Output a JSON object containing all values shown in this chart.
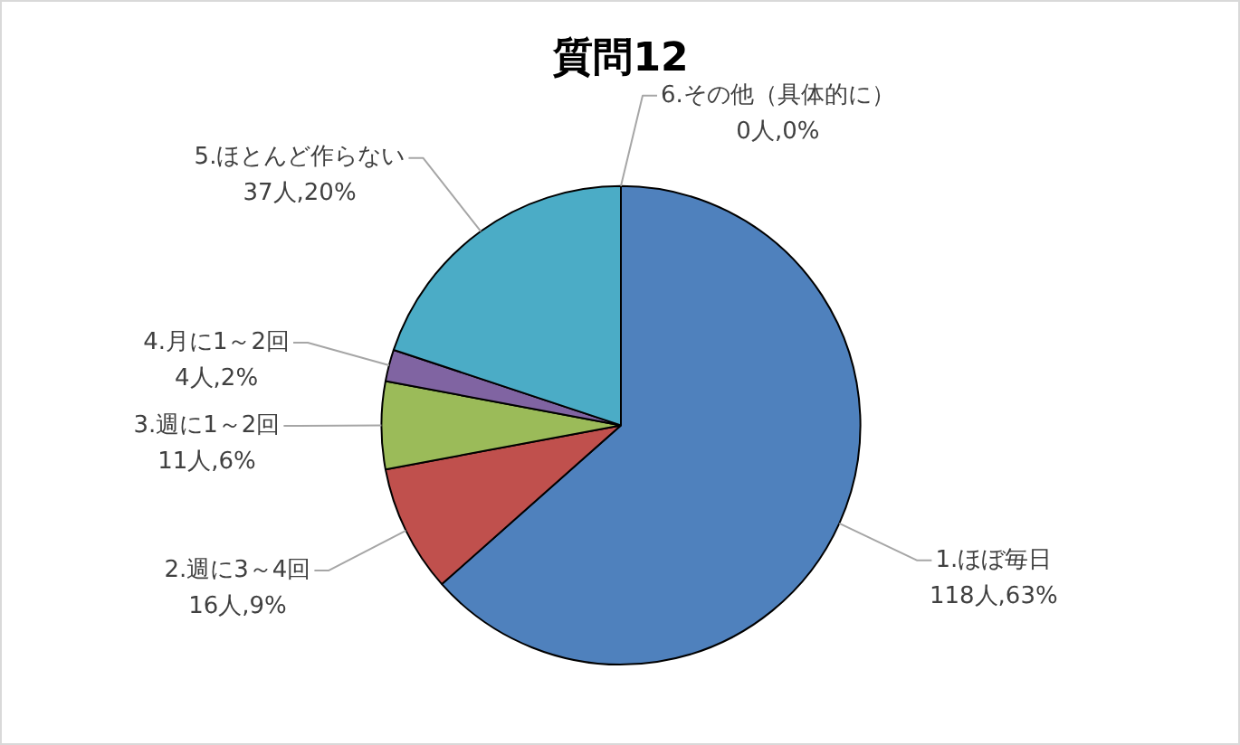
{
  "chart_data": {
    "type": "pie",
    "title": "質問12",
    "categories": [
      "1.ほぼ毎日",
      "2.週に3～4回",
      "3.週に1～2回",
      "4.月に1～2回",
      "5.ほとんど作らない",
      "6.その他（具体的に）"
    ],
    "values": [
      118,
      16,
      11,
      4,
      37,
      0
    ],
    "value_labels": [
      "118人,63%",
      "16人,9%",
      "11人,6%",
      "4人,2%",
      "37人,20%",
      "0人,0%"
    ],
    "colors": [
      "#4f81bd",
      "#c0504d",
      "#9bbb59",
      "#8064a2",
      "#4bacc6",
      "#f79646"
    ]
  }
}
